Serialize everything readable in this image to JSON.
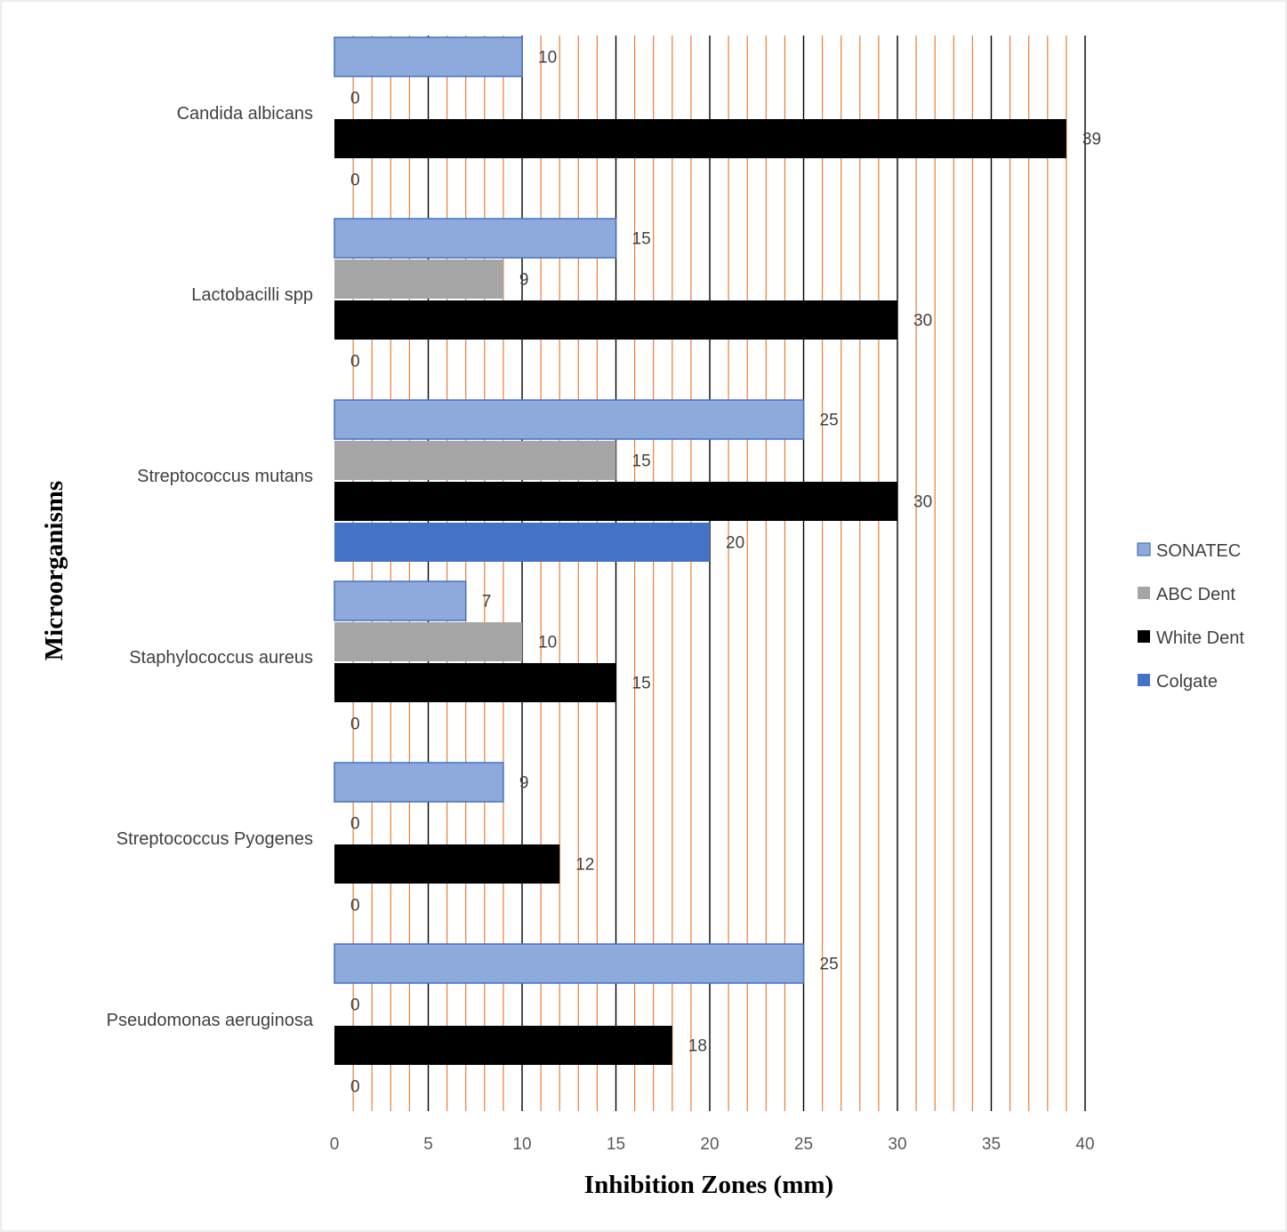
{
  "chart_data": {
    "type": "bar",
    "orientation": "horizontal",
    "categories": [
      "Candida albicans",
      "Lactobacilli spp",
      "Streptococcus mutans",
      "Staphylococcus aureus",
      "Streptococcus Pyogenes",
      "Pseudomonas aeruginosa"
    ],
    "series": [
      {
        "name": "SONATEC",
        "color": "#8EA9DB",
        "values": [
          10,
          15,
          25,
          7,
          9,
          25
        ]
      },
      {
        "name": "ABC Dent",
        "color": "#A5A5A5",
        "values": [
          0,
          9,
          15,
          10,
          0,
          0
        ]
      },
      {
        "name": "White Dent",
        "color": "#000000",
        "values": [
          39,
          30,
          30,
          15,
          12,
          18
        ]
      },
      {
        "name": "Colgate",
        "color": "#4472C4",
        "values": [
          0,
          0,
          20,
          0,
          0,
          0
        ]
      }
    ],
    "xlabel": "Inhibition  Zones (mm)",
    "ylabel": "Microorganisms",
    "xlim": [
      0,
      40
    ],
    "xticks": [
      0,
      5,
      10,
      15,
      20,
      25,
      30,
      35,
      40
    ],
    "major_gridline_color": "#000000",
    "minor_gridline_color": "#ED7D31",
    "legend_position": "right",
    "grid": true
  }
}
